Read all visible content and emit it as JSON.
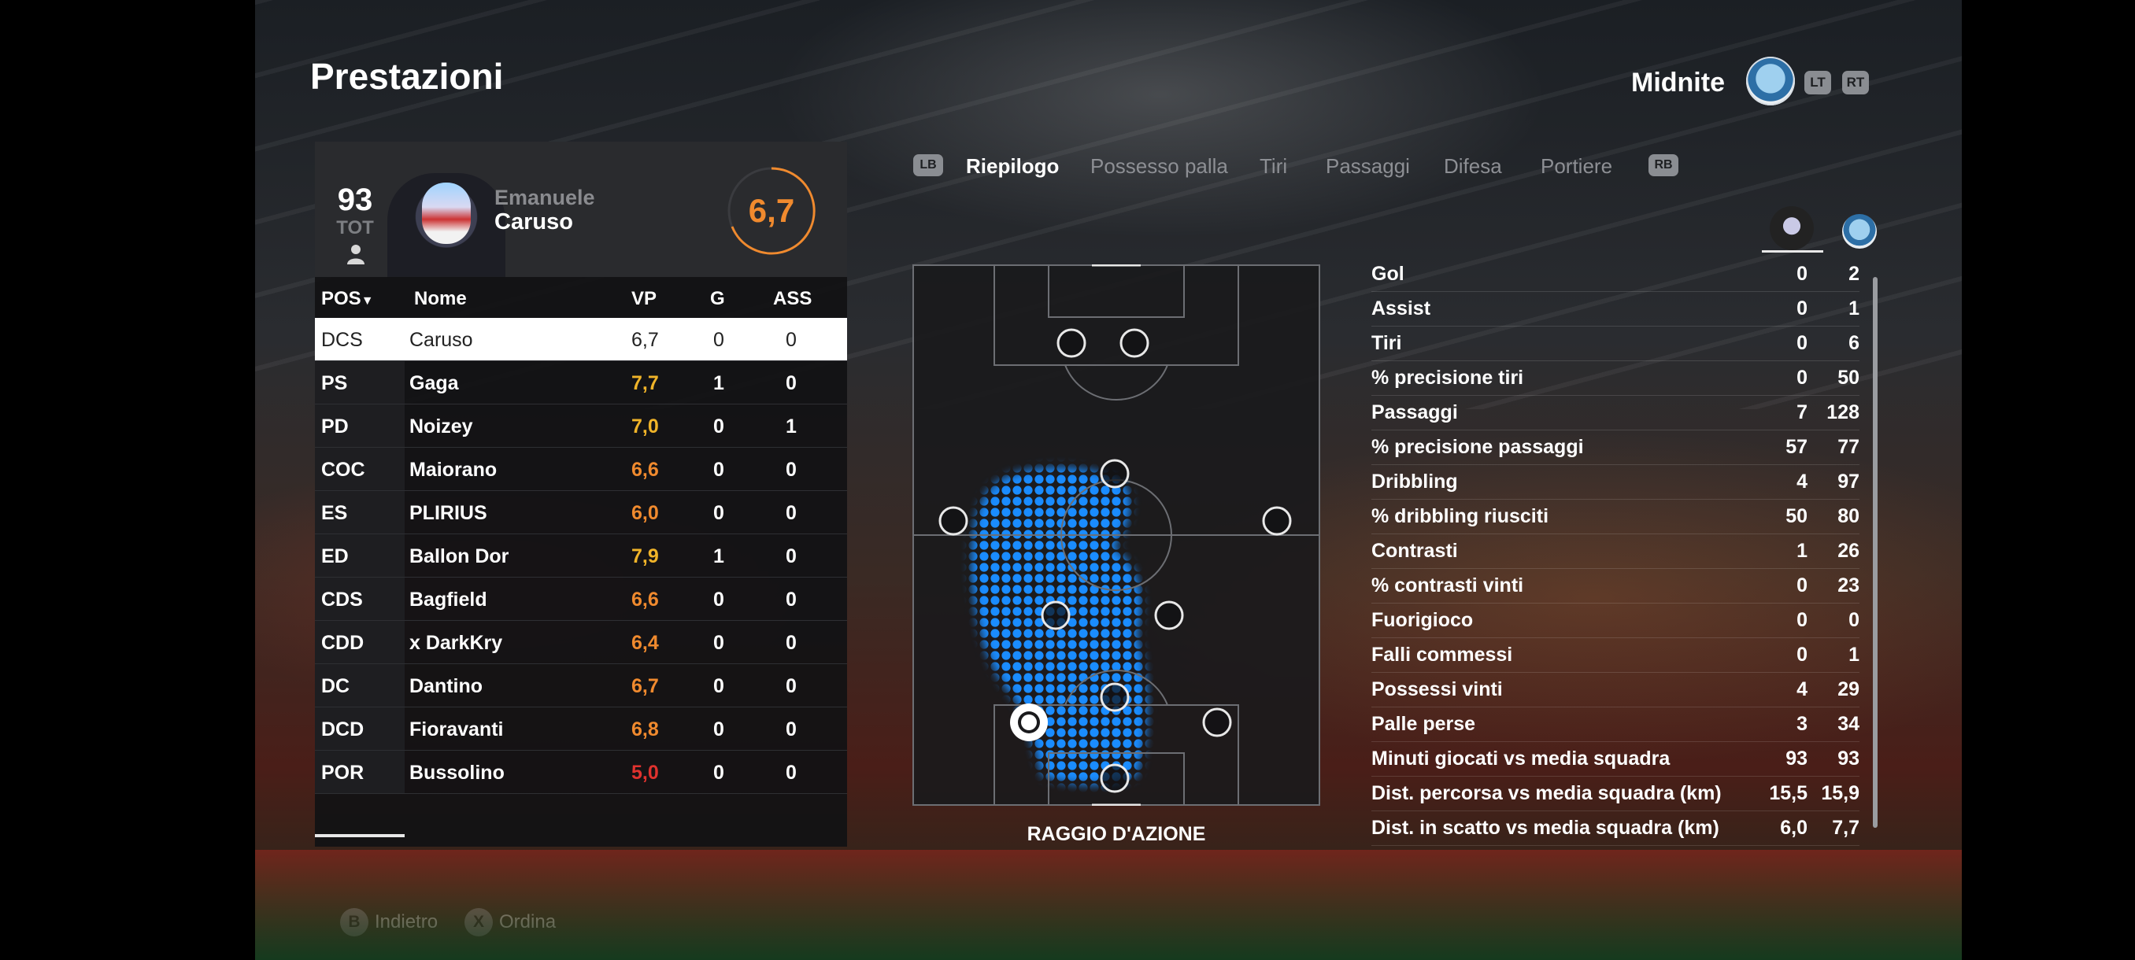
{
  "header": {
    "title": "Prestazioni",
    "team_name": "Midnite",
    "lt": "LT",
    "rt": "RT"
  },
  "player": {
    "overall": "93",
    "overall_label": "TOT",
    "first_name": "Emanuele",
    "last_name": "Caruso",
    "rating": "6,7"
  },
  "table": {
    "headers": {
      "pos": "POS",
      "name": "Nome",
      "vp": "VP",
      "g": "G",
      "ass": "ASS"
    },
    "rows": [
      {
        "pos": "DCS",
        "name": "Caruso",
        "vp": "6,7",
        "g": "0",
        "ass": "0",
        "vp_color": "#222222"
      },
      {
        "pos": "PS",
        "name": "Gaga",
        "vp": "7,7",
        "g": "1",
        "ass": "0",
        "vp_color": "#f0b429"
      },
      {
        "pos": "PD",
        "name": "Noizey",
        "vp": "7,0",
        "g": "0",
        "ass": "1",
        "vp_color": "#f0b429"
      },
      {
        "pos": "COC",
        "name": "Maiorano",
        "vp": "6,6",
        "g": "0",
        "ass": "0",
        "vp_color": "#f08a2e"
      },
      {
        "pos": "ES",
        "name": "PLIRIUS",
        "vp": "6,0",
        "g": "0",
        "ass": "0",
        "vp_color": "#f08a2e"
      },
      {
        "pos": "ED",
        "name": "Ballon Dor",
        "vp": "7,9",
        "g": "1",
        "ass": "0",
        "vp_color": "#f0b429"
      },
      {
        "pos": "CDS",
        "name": "Bagfield",
        "vp": "6,6",
        "g": "0",
        "ass": "0",
        "vp_color": "#f08a2e"
      },
      {
        "pos": "CDD",
        "name": "x DarkKry",
        "vp": "6,4",
        "g": "0",
        "ass": "0",
        "vp_color": "#f08a2e"
      },
      {
        "pos": "DC",
        "name": "Dantino",
        "vp": "6,7",
        "g": "0",
        "ass": "0",
        "vp_color": "#f08a2e"
      },
      {
        "pos": "DCD",
        "name": "Fioravanti",
        "vp": "6,8",
        "g": "0",
        "ass": "0",
        "vp_color": "#f08a2e"
      },
      {
        "pos": "POR",
        "name": "Bussolino",
        "vp": "5,0",
        "g": "0",
        "ass": "0",
        "vp_color": "#e0322e"
      }
    ]
  },
  "tabs": {
    "lb": "LB",
    "rb": "RB",
    "items": [
      "Riepilogo",
      "Possesso palla",
      "Tiri",
      "Passaggi",
      "Difesa",
      "Portiere"
    ],
    "active": "Riepilogo"
  },
  "heatmap": {
    "label": "RAGGIO D'AZIONE",
    "color": "#1a8cff"
  },
  "stats": [
    {
      "label": "Gol",
      "player": "0",
      "team": "2"
    },
    {
      "label": "Assist",
      "player": "0",
      "team": "1"
    },
    {
      "label": "Tiri",
      "player": "0",
      "team": "6"
    },
    {
      "label": "% precisione tiri",
      "player": "0",
      "team": "50"
    },
    {
      "label": "Passaggi",
      "player": "7",
      "team": "128"
    },
    {
      "label": "% precisione passaggi",
      "player": "57",
      "team": "77"
    },
    {
      "label": "Dribbling",
      "player": "4",
      "team": "97"
    },
    {
      "label": "% dribbling riusciti",
      "player": "50",
      "team": "80"
    },
    {
      "label": "Contrasti",
      "player": "1",
      "team": "26"
    },
    {
      "label": "% contrasti vinti",
      "player": "0",
      "team": "23"
    },
    {
      "label": "Fuorigioco",
      "player": "0",
      "team": "0"
    },
    {
      "label": "Falli commessi",
      "player": "0",
      "team": "1"
    },
    {
      "label": "Possessi vinti",
      "player": "4",
      "team": "29"
    },
    {
      "label": "Palle perse",
      "player": "3",
      "team": "34"
    },
    {
      "label": "Minuti giocati vs media squadra",
      "player": "93",
      "team": "93"
    },
    {
      "label": "Dist. percorsa vs media squadra (km)",
      "player": "15,5",
      "team": "15,9"
    },
    {
      "label": "Dist. in scatto vs media squadra (km)",
      "player": "6,0",
      "team": "7,7"
    }
  ],
  "footer": {
    "back_key": "B",
    "back_label": "Indietro",
    "sort_key": "X",
    "sort_label": "Ordina"
  }
}
